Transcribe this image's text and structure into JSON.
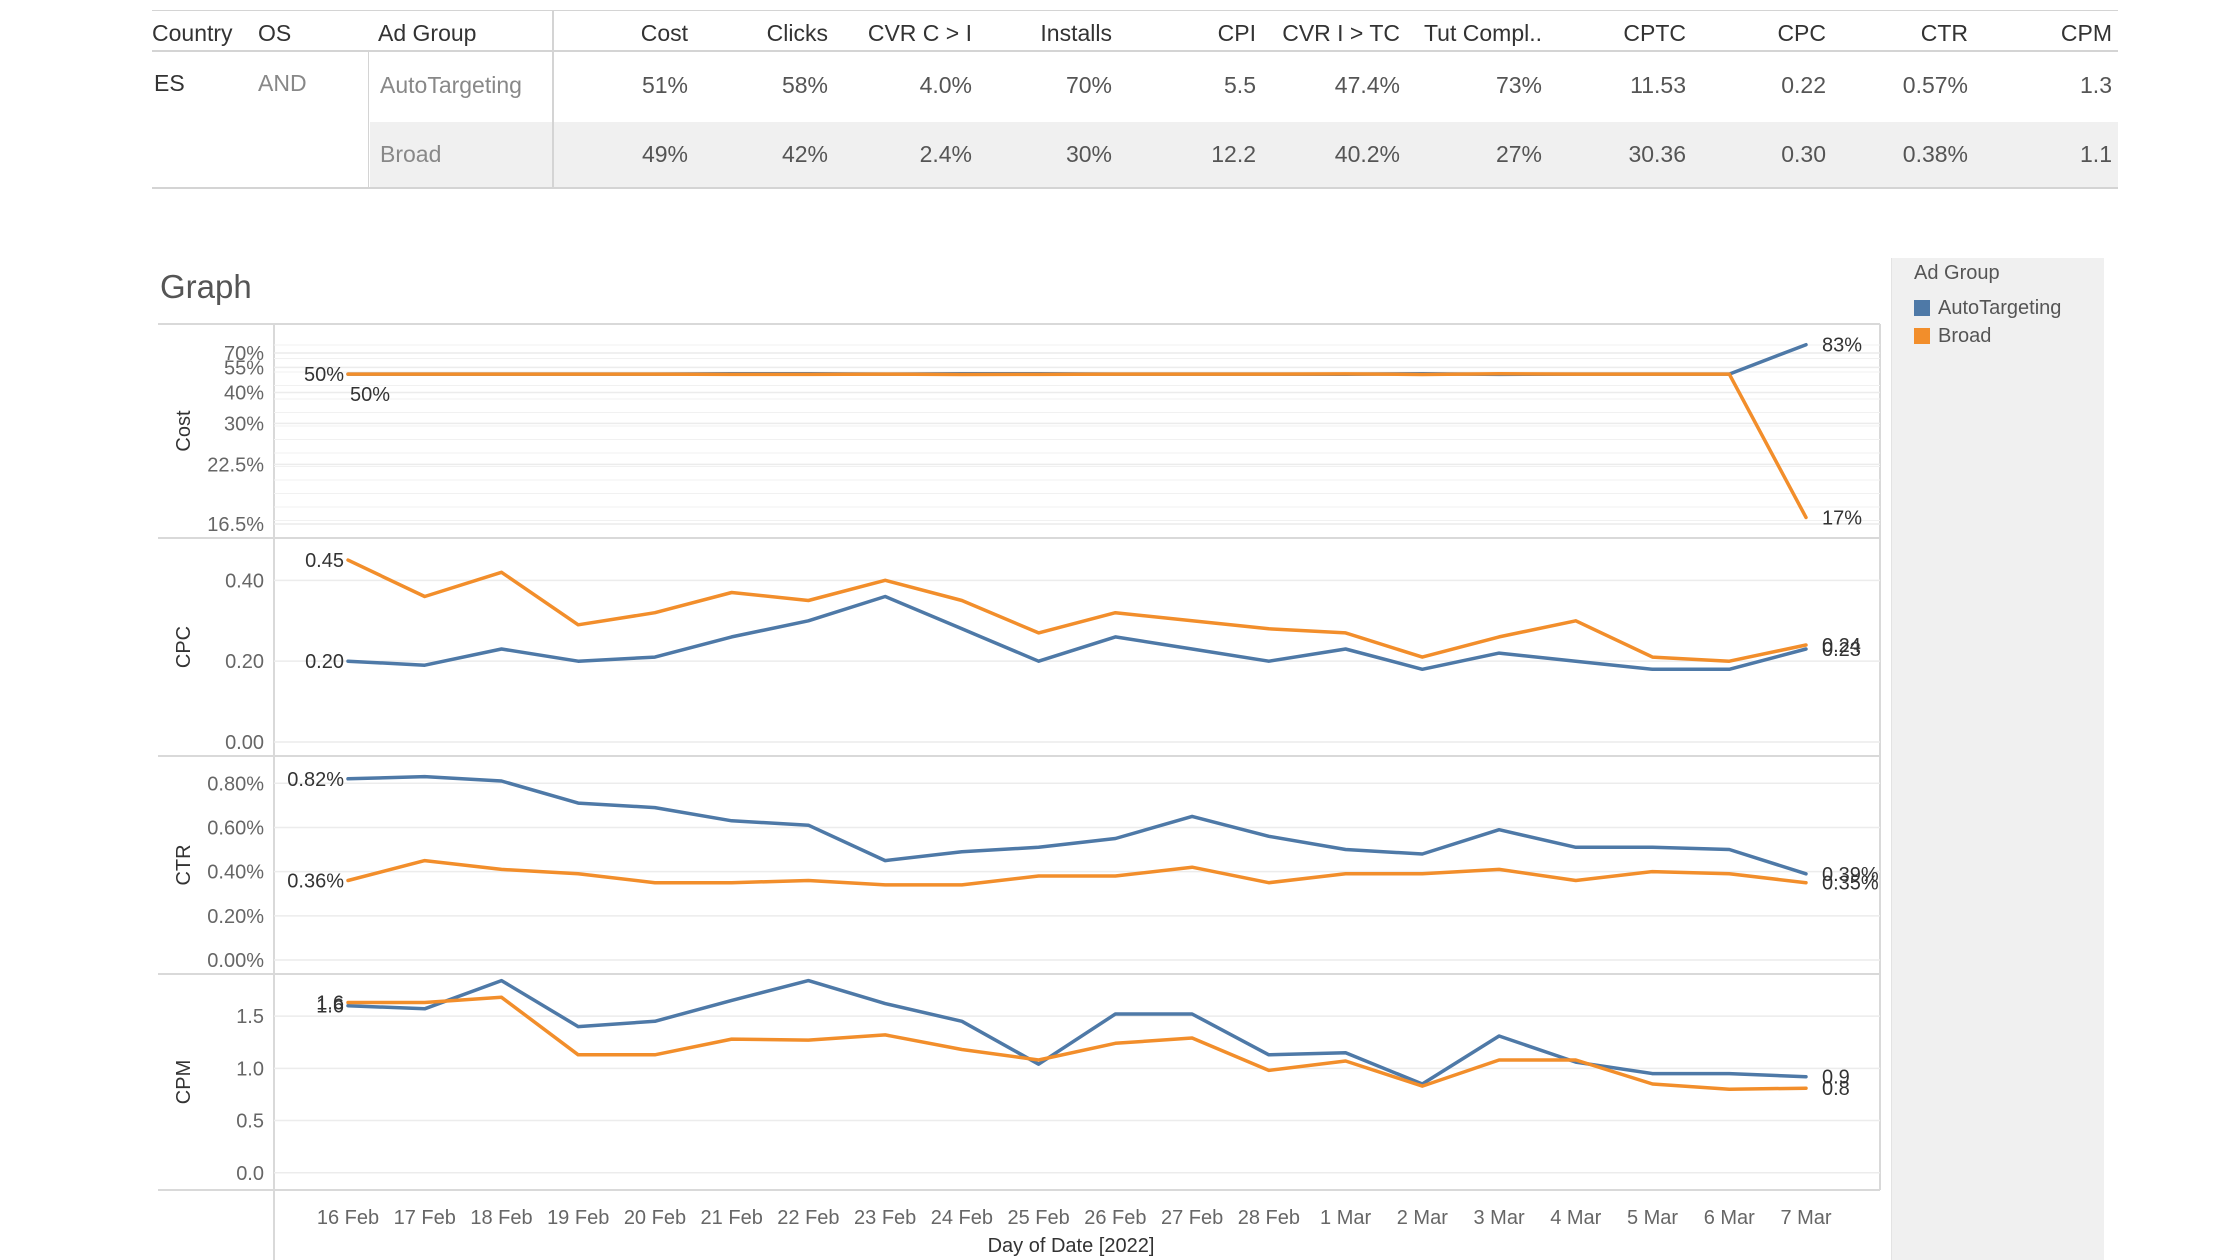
{
  "table": {
    "headers": [
      "Country",
      "OS",
      "Ad Group",
      "Cost",
      "Clicks",
      "CVR C > I",
      "Installs",
      "CPI",
      "CVR I > TC",
      "Tut Compl..",
      "CPTC",
      "CPC",
      "CTR",
      "CPM"
    ],
    "country": "ES",
    "os": "AND",
    "rows": [
      {
        "ad_group": "AutoTargeting",
        "values": [
          "51%",
          "58%",
          "4.0%",
          "70%",
          "5.5",
          "47.4%",
          "73%",
          "11.53",
          "0.22",
          "0.57%",
          "1.3"
        ]
      },
      {
        "ad_group": "Broad",
        "values": [
          "49%",
          "42%",
          "2.4%",
          "30%",
          "12.2",
          "40.2%",
          "27%",
          "30.36",
          "0.30",
          "0.38%",
          "1.1"
        ]
      }
    ]
  },
  "graph_title": "Graph",
  "legend": {
    "title": "Ad Group",
    "items": [
      {
        "name": "AutoTargeting",
        "color": "#4e79a7"
      },
      {
        "name": "Broad",
        "color": "#f28e2b"
      }
    ]
  },
  "chart_data": {
    "type": "line",
    "x": [
      "16 Feb",
      "17 Feb",
      "18 Feb",
      "19 Feb",
      "20 Feb",
      "21 Feb",
      "22 Feb",
      "23 Feb",
      "24 Feb",
      "25 Feb",
      "26 Feb",
      "27 Feb",
      "28 Feb",
      "1 Mar",
      "2 Mar",
      "3 Mar",
      "4 Mar",
      "5 Mar",
      "6 Mar",
      "7 Mar"
    ],
    "xlabel": "Day of Date [2022]",
    "grid": true,
    "legend_placement": "right",
    "panels": [
      {
        "ylabel": "Cost",
        "scale": "reciprocal",
        "yticks": [
          70,
          55,
          40,
          30,
          22.5,
          16.5
        ],
        "ytick_labels": [
          "70%",
          "55%",
          "40%",
          "30%",
          "22.5%",
          "16.5%"
        ],
        "series": [
          {
            "name": "AutoTargeting",
            "values": [
              50,
              50,
              50,
              50,
              50,
              50.2,
              50.2,
              50,
              50.3,
              50.2,
              50,
              50,
              50,
              49.9,
              50.3,
              49.8,
              50,
              50,
              50,
              83
            ],
            "first_label": "50%",
            "last_label": "83%"
          },
          {
            "name": "Broad",
            "values": [
              50,
              50,
              50,
              50,
              50,
              49.8,
              49.8,
              50,
              49.7,
              49.8,
              50,
              50,
              50,
              50.1,
              49.7,
              50.2,
              50,
              50,
              50,
              17
            ],
            "first_label": "50%",
            "last_label": "17%"
          }
        ]
      },
      {
        "ylabel": "CPC",
        "scale": "linear",
        "ylim": [
          0,
          0.48
        ],
        "yticks": [
          0,
          0.2,
          0.4
        ],
        "ytick_labels": [
          "0.00",
          "0.20",
          "0.40"
        ],
        "series": [
          {
            "name": "AutoTargeting",
            "values": [
              0.2,
              0.19,
              0.23,
              0.2,
              0.21,
              0.26,
              0.3,
              0.36,
              0.28,
              0.2,
              0.26,
              0.23,
              0.2,
              0.23,
              0.18,
              0.22,
              0.2,
              0.18,
              0.18,
              0.23
            ],
            "first_label": "0.20",
            "last_label": "0.23"
          },
          {
            "name": "Broad",
            "values": [
              0.45,
              0.36,
              0.42,
              0.29,
              0.32,
              0.37,
              0.35,
              0.4,
              0.35,
              0.27,
              0.32,
              0.3,
              0.28,
              0.27,
              0.21,
              0.26,
              0.3,
              0.21,
              0.2,
              0.24
            ],
            "first_label": "0.45",
            "last_label": "0.24"
          }
        ]
      },
      {
        "ylabel": "CTR",
        "scale": "linear",
        "ylim": [
          0,
          0.86
        ],
        "yticks": [
          0,
          0.2,
          0.4,
          0.6,
          0.8
        ],
        "ytick_labels": [
          "0.00%",
          "0.20%",
          "0.40%",
          "0.60%",
          "0.80%"
        ],
        "series": [
          {
            "name": "AutoTargeting",
            "values": [
              0.82,
              0.83,
              0.81,
              0.71,
              0.69,
              0.63,
              0.61,
              0.45,
              0.49,
              0.51,
              0.55,
              0.65,
              0.56,
              0.5,
              0.48,
              0.59,
              0.51,
              0.51,
              0.5,
              0.39
            ],
            "first_label": "0.82%",
            "last_label": "0.39%"
          },
          {
            "name": "Broad",
            "values": [
              0.36,
              0.45,
              0.41,
              0.39,
              0.35,
              0.35,
              0.36,
              0.34,
              0.34,
              0.38,
              0.38,
              0.42,
              0.35,
              0.39,
              0.39,
              0.41,
              0.36,
              0.4,
              0.39,
              0.35
            ],
            "first_label": "0.36%",
            "last_label": "0.35%"
          }
        ]
      },
      {
        "ylabel": "CPM",
        "scale": "linear",
        "ylim": [
          -0.05,
          1.75
        ],
        "yticks": [
          0,
          0.5,
          1.0,
          1.5
        ],
        "ytick_labels": [
          "0.0",
          "0.5",
          "1.0",
          "1.5"
        ],
        "series": [
          {
            "name": "AutoTargeting",
            "values": [
              1.6,
              1.57,
              1.84,
              1.4,
              1.45,
              1.65,
              1.84,
              1.62,
              1.45,
              1.04,
              1.52,
              1.52,
              1.13,
              1.15,
              0.85,
              1.31,
              1.06,
              0.95,
              0.95,
              0.92
            ],
            "first_label": "1.6",
            "last_label": "0.9"
          },
          {
            "name": "Broad",
            "values": [
              1.63,
              1.63,
              1.68,
              1.13,
              1.13,
              1.28,
              1.27,
              1.32,
              1.18,
              1.08,
              1.24,
              1.29,
              0.98,
              1.07,
              0.83,
              1.08,
              1.08,
              0.85,
              0.8,
              0.81
            ],
            "first_label": "1.6",
            "last_label": "0.8"
          }
        ]
      }
    ]
  }
}
